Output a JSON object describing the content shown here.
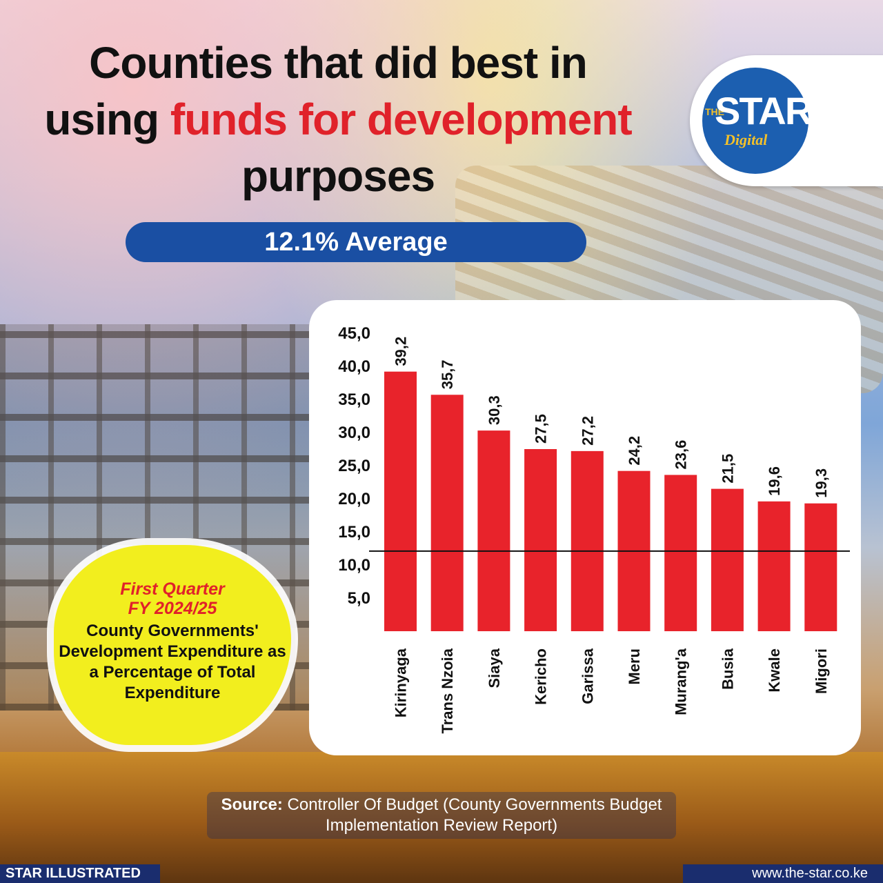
{
  "title": {
    "line1": "Counties that did best in",
    "line2_prefix": "using ",
    "line2_highlight": "funds for development",
    "line3": "purposes"
  },
  "logo": {
    "the": "THE",
    "star": "STAR",
    "digital": "Digital"
  },
  "average_label": "12.1% Average",
  "callout": {
    "period_line1": "First Quarter",
    "period_line2": "FY 2024/25",
    "description": "County Governments' Development Expenditure as a Percentage of Total Expenditure"
  },
  "source": {
    "prefix": "Source:",
    "text": "Controller Of Budget (County Governments Budget Implementation Review Report)"
  },
  "footer": {
    "left": "STAR ILLUSTRATED",
    "right": "www.the-star.co.ke"
  },
  "colors": {
    "bar": "#e8232b",
    "pill": "#1a4fa3",
    "callout": "#f2ee1e",
    "highlight": "#e0222a"
  },
  "chart_data": {
    "type": "bar",
    "categories": [
      "Kirinyaga",
      "Trans Nzoia",
      "Siaya",
      "Kericho",
      "Garissa",
      "Meru",
      "Murang'a",
      "Busia",
      "Kwale",
      "Migori"
    ],
    "values": [
      39.2,
      35.7,
      30.3,
      27.5,
      27.2,
      24.2,
      23.6,
      21.5,
      19.6,
      19.3
    ],
    "value_labels": [
      "39,2",
      "35,7",
      "30,3",
      "27,5",
      "27,2",
      "24,2",
      "23,6",
      "21,5",
      "19,6",
      "19,3"
    ],
    "y_ticks": [
      "45,0",
      "40,0",
      "35,0",
      "30,0",
      "25,0",
      "20,0",
      "15,0",
      "10,0",
      "5,0"
    ],
    "y_tick_values": [
      45,
      40,
      35,
      30,
      25,
      20,
      15,
      10,
      5
    ],
    "reference_line": 12.1,
    "ylim": [
      0,
      45
    ],
    "title": "",
    "xlabel": "",
    "ylabel": ""
  }
}
